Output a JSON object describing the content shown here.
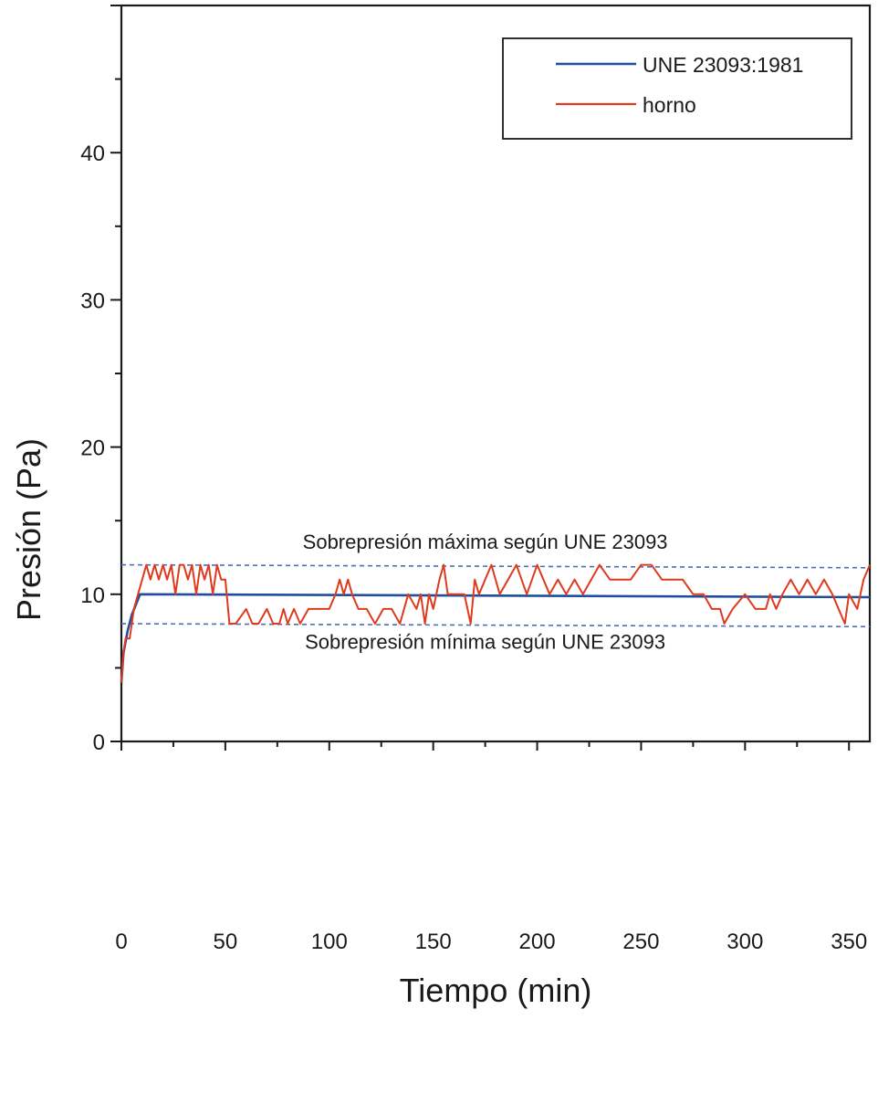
{
  "chart_data": {
    "type": "line",
    "xlabel": "Tiempo (min)",
    "ylabel": "Presión (Pa)",
    "xlim": [
      0,
      360
    ],
    "ylim": [
      0,
      50
    ],
    "xticks": [
      0,
      50,
      100,
      150,
      200,
      250,
      300,
      350
    ],
    "yticks": [
      0,
      10,
      20,
      30,
      40
    ],
    "grid": false,
    "legend_position": "top-right",
    "series": [
      {
        "name": "UNE 23093:1981",
        "color": "#1f4e9e",
        "x": [
          0,
          1,
          3,
          5,
          7,
          9,
          360
        ],
        "y": [
          4.0,
          6.0,
          7.5,
          8.6,
          9.3,
          10.0,
          9.8
        ]
      },
      {
        "name": "horno",
        "color": "#e03a1e",
        "x": [
          0,
          1,
          2,
          4,
          6,
          8,
          10,
          12,
          14,
          16,
          18,
          20,
          22,
          24,
          26,
          28,
          30,
          32,
          34,
          36,
          38,
          40,
          42,
          44,
          46,
          48,
          50,
          52,
          55,
          60,
          63,
          66,
          70,
          73,
          76,
          78,
          80,
          83,
          86,
          90,
          95,
          100,
          103,
          105,
          107,
          109,
          111,
          114,
          118,
          122,
          126,
          130,
          134,
          138,
          142,
          144,
          146,
          148,
          150,
          153,
          155,
          157,
          160,
          165,
          168,
          170,
          172,
          175,
          178,
          182,
          186,
          190,
          195,
          200,
          203,
          206,
          210,
          214,
          218,
          222,
          226,
          230,
          235,
          240,
          245,
          250,
          255,
          260,
          265,
          270,
          275,
          280,
          284,
          288,
          290,
          294,
          300,
          305,
          310,
          312,
          315,
          318,
          322,
          326,
          330,
          334,
          338,
          342,
          345,
          348,
          350,
          354,
          357,
          360
        ],
        "y": [
          4.0,
          6.0,
          7.0,
          7.0,
          9.0,
          10.0,
          11.0,
          12.0,
          11.0,
          12.0,
          11.0,
          12.0,
          11.0,
          12.0,
          10.0,
          12.0,
          12.0,
          11.0,
          12.0,
          10.0,
          12.0,
          11.0,
          12.0,
          10.0,
          12.0,
          11.0,
          11.0,
          8.0,
          8.0,
          9.0,
          8.0,
          8.0,
          9.0,
          8.0,
          8.0,
          9.0,
          8.0,
          9.0,
          8.0,
          9.0,
          9.0,
          9.0,
          10.0,
          11.0,
          10.0,
          11.0,
          10.0,
          9.0,
          9.0,
          8.0,
          9.0,
          9.0,
          8.0,
          10.0,
          9.0,
          10.0,
          8.0,
          10.0,
          9.0,
          11.0,
          12.0,
          10.0,
          10.0,
          10.0,
          8.0,
          11.0,
          10.0,
          11.0,
          12.0,
          10.0,
          11.0,
          12.0,
          10.0,
          12.0,
          11.0,
          10.0,
          11.0,
          10.0,
          11.0,
          10.0,
          11.0,
          12.0,
          11.0,
          11.0,
          11.0,
          12.0,
          12.0,
          11.0,
          11.0,
          11.0,
          10.0,
          10.0,
          9.0,
          9.0,
          8.0,
          9.0,
          10.0,
          9.0,
          9.0,
          10.0,
          9.0,
          10.0,
          11.0,
          10.0,
          11.0,
          10.0,
          11.0,
          10.0,
          9.0,
          8.0,
          10.0,
          9.0,
          11.0,
          12.0
        ]
      }
    ],
    "reference_lines": [
      {
        "y_start": 12.0,
        "y_end": 11.8,
        "color": "#4a6fb5",
        "style": "dashed"
      },
      {
        "y_start": 8.0,
        "y_end": 7.8,
        "color": "#4a6fb5",
        "style": "dashed"
      }
    ],
    "annotations": [
      {
        "text": "Sobrepresión máxima según UNE 23093",
        "x": 175,
        "y": 13.1
      },
      {
        "text": "Sobrepresión mínima según UNE 23093",
        "x": 175,
        "y": 6.3
      }
    ]
  }
}
